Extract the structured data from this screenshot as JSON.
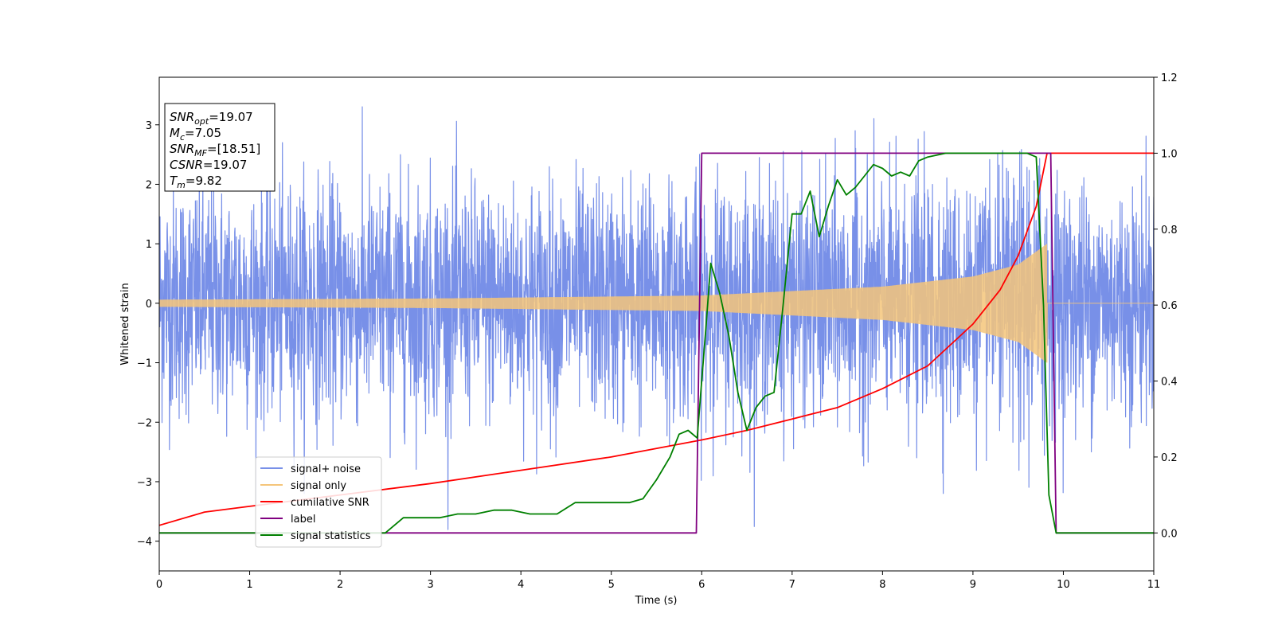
{
  "chart_data": {
    "type": "line",
    "title": "",
    "xlabel": "Time (s)",
    "ylabel_left": "Whitened strain",
    "ylabel_right": "",
    "xlim": [
      0,
      11
    ],
    "ylim_left": [
      -4.5,
      3.8
    ],
    "ylim_right": [
      -0.1,
      1.2
    ],
    "x_ticks": [
      0,
      1,
      2,
      3,
      4,
      5,
      6,
      7,
      8,
      9,
      10,
      11
    ],
    "y_left_ticks": [
      -4,
      -3,
      -2,
      -1,
      0,
      1,
      2,
      3
    ],
    "y_left_tick_labels": [
      "−4",
      "−3",
      "−2",
      "−1",
      "0",
      "1",
      "2",
      "3"
    ],
    "y_right_ticks": [
      0.0,
      0.2,
      0.4,
      0.6,
      0.8,
      1.0,
      1.2
    ],
    "y_right_tick_labels": [
      "0.0",
      "0.2",
      "0.4",
      "0.6",
      "0.8",
      "1.0",
      "1.2"
    ],
    "grid": false,
    "legend_position": "lower-left",
    "info_box": {
      "position": "upper-left",
      "lines": [
        {
          "main": "SNR",
          "sub": "opt",
          "value": "=19.07"
        },
        {
          "main": "M",
          "sub": "c",
          "value": "=7.05"
        },
        {
          "main": "SNR",
          "sub": "MF",
          "value": "=[18.51]"
        },
        {
          "main": "CSNR",
          "sub": "",
          "value": "=19.07"
        },
        {
          "main": "T",
          "sub": "m",
          "value": "=9.82"
        }
      ]
    },
    "series": [
      {
        "name": "signal+ noise",
        "axis": "left",
        "color": "#7890e8",
        "kind": "noise",
        "typical_range": [
          -1.9,
          2.0
        ],
        "spike_extremes": [
          -4.2,
          3.4
        ],
        "amplitude_envelope_of_signal": true
      },
      {
        "name": "signal only",
        "axis": "left",
        "color": "#f5c57a",
        "kind": "chirp",
        "amplitude_at": [
          [
            0,
            0.06
          ],
          [
            3,
            0.08
          ],
          [
            6,
            0.13
          ],
          [
            8,
            0.28
          ],
          [
            9,
            0.45
          ],
          [
            9.5,
            0.65
          ],
          [
            9.82,
            1.0
          ]
        ],
        "end_time": 9.82
      },
      {
        "name": "cumilative SNR",
        "axis": "right",
        "color": "#ff0000",
        "x": [
          0,
          0.5,
          1,
          2,
          3,
          4,
          5,
          6,
          6.5,
          7,
          7.5,
          8,
          8.5,
          9,
          9.3,
          9.5,
          9.7,
          9.82,
          11
        ],
        "y": [
          0.02,
          0.055,
          0.07,
          0.1,
          0.13,
          0.165,
          0.2,
          0.245,
          0.27,
          0.3,
          0.33,
          0.38,
          0.44,
          0.55,
          0.64,
          0.73,
          0.86,
          1.0,
          1.0
        ]
      },
      {
        "name": "label",
        "axis": "right",
        "color": "#800080",
        "x": [
          0,
          5.94,
          6.0,
          9.86,
          9.92,
          11
        ],
        "y": [
          0,
          0,
          1,
          1,
          0,
          0
        ]
      },
      {
        "name": "signal statistics",
        "axis": "right",
        "color": "#008000",
        "x": [
          0,
          2.5,
          2.7,
          2.9,
          3.1,
          3.3,
          3.5,
          3.7,
          3.9,
          4.1,
          4.3,
          4.4,
          4.6,
          4.8,
          5.0,
          5.2,
          5.35,
          5.5,
          5.65,
          5.75,
          5.85,
          5.95,
          6.05,
          6.1,
          6.2,
          6.3,
          6.4,
          6.5,
          6.6,
          6.7,
          6.8,
          6.9,
          7.0,
          7.1,
          7.2,
          7.3,
          7.4,
          7.5,
          7.6,
          7.7,
          7.8,
          7.9,
          8.0,
          8.1,
          8.2,
          8.3,
          8.4,
          8.5,
          8.7,
          9.0,
          9.3,
          9.5,
          9.6,
          9.7,
          9.78,
          9.84,
          9.92,
          11
        ],
        "y": [
          0.0,
          0.0,
          0.04,
          0.04,
          0.04,
          0.05,
          0.05,
          0.06,
          0.06,
          0.05,
          0.05,
          0.05,
          0.08,
          0.08,
          0.08,
          0.08,
          0.09,
          0.14,
          0.2,
          0.26,
          0.27,
          0.25,
          0.55,
          0.71,
          0.63,
          0.52,
          0.37,
          0.27,
          0.33,
          0.36,
          0.37,
          0.6,
          0.84,
          0.84,
          0.9,
          0.78,
          0.86,
          0.93,
          0.89,
          0.91,
          0.94,
          0.97,
          0.96,
          0.94,
          0.95,
          0.94,
          0.98,
          0.99,
          1.0,
          1.0,
          1.0,
          1.0,
          1.0,
          0.99,
          0.6,
          0.1,
          0.0,
          0.0
        ]
      }
    ]
  }
}
